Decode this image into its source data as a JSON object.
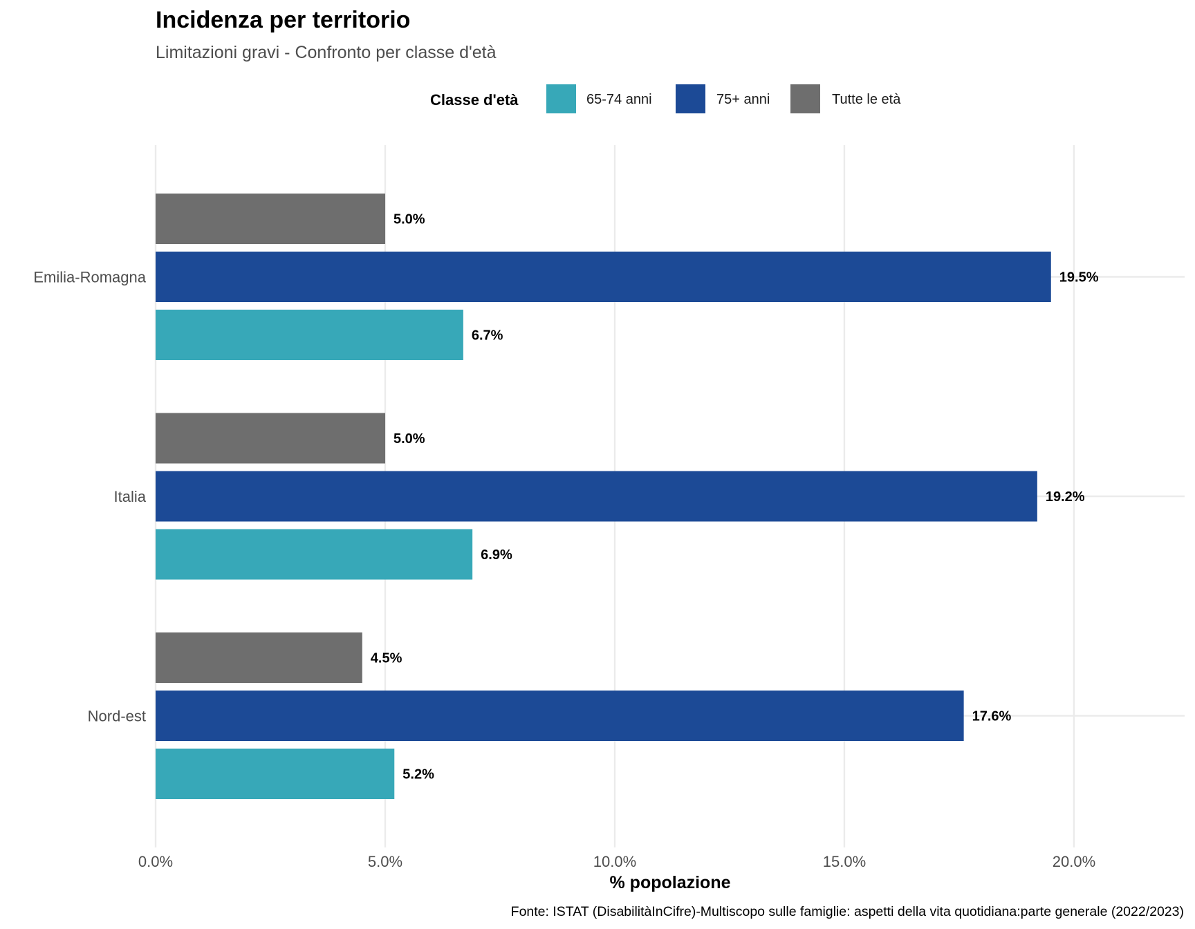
{
  "chart_data": {
    "type": "bar",
    "orientation": "horizontal",
    "title": "Incidenza per territorio",
    "subtitle": "Limitazioni gravi - Confronto per classe d'età",
    "xlabel": "% popolazione",
    "ylabel": "",
    "caption": "Fonte: ISTAT (DisabilitàInCifre)-Multiscopo sulle famiglie: aspetti della vita quotidiana:parte generale (2022/2023)",
    "categories": [
      "Emilia-Romagna",
      "Italia",
      "Nord-est"
    ],
    "series": [
      {
        "name": "Tutte le età",
        "color": "#6e6e6e",
        "values": [
          5.0,
          5.0,
          4.5
        ],
        "labels": [
          "5.0%",
          "5.0%",
          "4.5%"
        ]
      },
      {
        "name": "75+ anni",
        "color": "#1c4a96",
        "values": [
          19.5,
          19.2,
          17.6
        ],
        "labels": [
          "19.5%",
          "19.2%",
          "17.6%"
        ]
      },
      {
        "name": "65-74 anni",
        "color": "#37a8b8",
        "values": [
          6.7,
          6.9,
          5.2
        ],
        "labels": [
          "6.7%",
          "6.9%",
          "5.2%"
        ]
      }
    ],
    "legend": {
      "title": "Classe d'età",
      "position": "top",
      "entries": [
        {
          "label": "65-74 anni",
          "color": "#37a8b8"
        },
        {
          "label": "75+ anni",
          "color": "#1c4a96"
        },
        {
          "label": "Tutte le età",
          "color": "#6e6e6e"
        }
      ]
    },
    "xlim": [
      0,
      22.41
    ],
    "xticks": [
      0,
      5,
      10,
      15,
      20
    ],
    "xtick_labels": [
      "0.0%",
      "5.0%",
      "10.0%",
      "15.0%",
      "20.0%"
    ],
    "grid": true
  }
}
